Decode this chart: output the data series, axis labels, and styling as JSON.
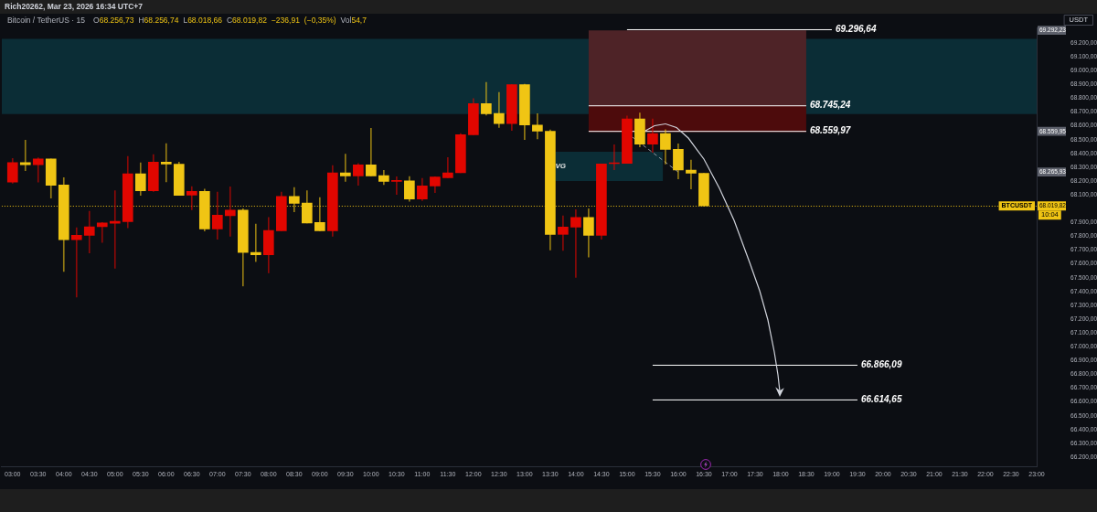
{
  "chart_data": {
    "type": "candlestick",
    "title": "Bitcoin / TetherUS · 15",
    "subtitle": "O68.256,73 H68.256,74 L68.018,66 C68.019,82 −236,91 (−0,35%) Vol54,7",
    "ylabel": "USDT",
    "x": [
      3,
      3.25,
      3.5,
      3.75,
      4,
      4.25,
      4.5,
      4.75,
      5,
      5.25,
      5.5,
      5.75,
      6,
      6.25,
      6.5,
      6.75,
      7,
      7.25,
      7.5,
      7.75,
      8,
      8.25,
      8.5,
      8.75,
      9,
      9.25,
      9.5,
      9.75,
      10,
      10.25,
      10.5,
      10.75,
      11,
      11.25,
      11.5,
      11.75,
      12,
      12.25,
      12.5,
      12.75,
      13,
      13.25,
      13.5,
      13.75,
      14,
      14.25,
      14.5,
      14.75,
      15,
      15.25,
      15.5,
      15.75,
      16,
      16.25,
      16.5
    ],
    "ohlc": [
      [
        68193,
        68363,
        68185,
        68334
      ],
      [
        68334,
        68496,
        68275,
        68319
      ],
      [
        68319,
        68368,
        68193,
        68361
      ],
      [
        68361,
        68361,
        68076,
        68169
      ],
      [
        68171,
        68224,
        67546,
        67776
      ],
      [
        67776,
        67862,
        67359,
        67807
      ],
      [
        67807,
        67981,
        67679,
        67869
      ],
      [
        67869,
        67900,
        67756,
        67897
      ],
      [
        67895,
        68131,
        67568,
        67908
      ],
      [
        67906,
        68379,
        67862,
        68253
      ],
      [
        68253,
        68332,
        68096,
        68129
      ],
      [
        68129,
        68392,
        68125,
        68337
      ],
      [
        68337,
        68471,
        68195,
        68323
      ],
      [
        68323,
        68337,
        68096,
        68096
      ],
      [
        68098,
        68160,
        67992,
        68125
      ],
      [
        68125,
        68142,
        67838,
        67853
      ],
      [
        67853,
        68120,
        67778,
        67953
      ],
      [
        67950,
        68158,
        67800,
        67990
      ],
      [
        67990,
        67999,
        67440,
        67683
      ],
      [
        67683,
        67889,
        67617,
        67666
      ],
      [
        67666,
        67937,
        67535,
        67842
      ],
      [
        67840,
        68120,
        67840,
        68089
      ],
      [
        68089,
        68153,
        67977,
        68039
      ],
      [
        68041,
        68131,
        67897,
        67897
      ],
      [
        67900,
        68081,
        67840,
        67840
      ],
      [
        67840,
        68312,
        67800,
        68259
      ],
      [
        68259,
        68396,
        68198,
        68237
      ],
      [
        68237,
        68328,
        68169,
        68317
      ],
      [
        68317,
        68582,
        68237,
        68237
      ],
      [
        68239,
        68277,
        68175,
        68198
      ],
      [
        68198,
        68231,
        68103,
        68204
      ],
      [
        68202,
        68233,
        68054,
        68070
      ],
      [
        68070,
        68220,
        68059,
        68165
      ],
      [
        68165,
        68231,
        68116,
        68229
      ],
      [
        68224,
        68370,
        68224,
        68260
      ],
      [
        68260,
        68544,
        68260,
        68536
      ],
      [
        68536,
        68798,
        68536,
        68761
      ],
      [
        68761,
        68915,
        68677,
        68688
      ],
      [
        68690,
        68842,
        68589,
        68617
      ],
      [
        68617,
        68898,
        68566,
        68898
      ],
      [
        68898,
        68902,
        68500,
        68606
      ],
      [
        68606,
        68688,
        68505,
        68562
      ],
      [
        68560,
        68571,
        67701,
        67814
      ],
      [
        67814,
        67948,
        67697,
        67867
      ],
      [
        67867,
        67993,
        67502,
        67937
      ],
      [
        67937,
        67999,
        67650,
        67807
      ],
      [
        67807,
        68324,
        67778,
        68324
      ],
      [
        68326,
        68463,
        68282,
        68330
      ],
      [
        68328,
        68672,
        68328,
        68650
      ],
      [
        68650,
        68694,
        68447,
        68467
      ],
      [
        68467,
        68650,
        68408,
        68544
      ],
      [
        68544,
        68573,
        68324,
        68430
      ],
      [
        68430,
        68469,
        68215,
        68280
      ],
      [
        68280,
        68352,
        68143,
        68257
      ],
      [
        68256.73,
        68256.74,
        68018.66,
        68019.82
      ]
    ],
    "colors": [
      "#e10600",
      "#f0c514",
      "#e10600",
      "#f0c514",
      "#f0c514",
      "#e10600",
      "#e10600",
      "#e10600",
      "#e10600",
      "#e10600",
      "#f0c514",
      "#e10600",
      "#f0c514",
      "#f0c514",
      "#e10600",
      "#f0c514",
      "#e10600",
      "#e10600",
      "#f0c514",
      "#f0c514",
      "#e10600",
      "#e10600",
      "#f0c514",
      "#f0c514",
      "#f0c514",
      "#e10600",
      "#f0c514",
      "#e10600",
      "#f0c514",
      "#f0c514",
      "#e10600",
      "#f0c514",
      "#e10600",
      "#e10600",
      "#e10600",
      "#e10600",
      "#e10600",
      "#f0c514",
      "#f0c514",
      "#e10600",
      "#f0c514",
      "#f0c514",
      "#f0c514",
      "#e10600",
      "#e10600",
      "#f0c514",
      "#e10600",
      "#e10600",
      "#e10600",
      "#f0c514",
      "#e10600",
      "#f0c514",
      "#f0c514",
      "#f0c514",
      "#f0c514"
    ],
    "series": [
      {
        "type": "line",
        "x": [
          14.25,
          18.5
        ],
        "values": [
          null,
          null
        ],
        "lower": [
          68745.24,
          68745.24
        ],
        "upper": [
          69292.23,
          69292.23
        ],
        "color": "#4e2327"
      },
      {
        "type": "line",
        "x": [
          14.25,
          18.5
        ],
        "values": [
          null,
          null
        ],
        "lower": [
          68555,
          68555
        ],
        "upper": [
          68745.24,
          68745.24
        ],
        "color": "#4d0b0c"
      },
      {
        "type": "line",
        "x": [
          13.6,
          15.7
        ],
        "values": [
          null,
          null
        ],
        "lower": [
          68200,
          68200
        ],
        "upper": [
          68412,
          68412
        ],
        "color": "#0b2d36"
      },
      {
        "type": "line",
        "x": [
          15,
          19
        ],
        "values": [
          69296.64,
          69296.64
        ],
        "color": "#ffffff",
        "value_labels": [
          null,
          "69.296,64"
        ]
      },
      {
        "type": "line",
        "x": [
          14.25,
          18.5
        ],
        "values": [
          68745.24,
          68745.24
        ],
        "color": "#ffffff",
        "value_labels": [
          null,
          "68.745,24"
        ]
      },
      {
        "type": "line",
        "x": [
          14.25,
          18.5
        ],
        "values": [
          68559.97,
          68559.97
        ],
        "color": "#ffffff",
        "value_labels": [
          null,
          "68.559,97"
        ]
      },
      {
        "type": "line",
        "x": [
          15.5,
          19.5
        ],
        "values": [
          66866.09,
          66866.09
        ],
        "color": "#ffffff",
        "value_labels": [
          null,
          "66.866,09"
        ]
      },
      {
        "type": "line",
        "x": [
          15.5,
          19.5
        ],
        "values": [
          66614.65,
          66614.65
        ],
        "color": "#ffffff",
        "value_labels": [
          null,
          "66.614,65"
        ]
      },
      {
        "type": "line",
        "x": [
          15.1,
          16
        ],
        "values": [
          68520,
          68265.93
        ],
        "color": "#9598a1",
        "line_style": "dashed"
      }
    ],
    "bands": [
      {
        "axis": "y",
        "from": 68686,
        "to": 69231,
        "color": "#0b2d36"
      }
    ],
    "ref_lines": [
      {
        "axis": "y",
        "value": 68019.82,
        "label": "BTCUSDT",
        "color": "#f0c514",
        "line_style": "dotted"
      }
    ],
    "annotations": [
      "Rich20262, Mar 23, 2026 16:34 UTC+7",
      "10:04",
      {
        "text": "VG",
        "x": 13.6,
        "y": 68306
      }
    ],
    "xlim": [
      2.787,
      23
    ],
    "xticks": [
      {
        "value": 3,
        "label": "03:00"
      },
      {
        "value": 3.5,
        "label": "03:30"
      },
      {
        "value": 4,
        "label": "04:00"
      },
      {
        "value": 4.5,
        "label": "04:30"
      },
      {
        "value": 5,
        "label": "05:00"
      },
      {
        "value": 5.5,
        "label": "05:30"
      },
      {
        "value": 6,
        "label": "06:00"
      },
      {
        "value": 6.5,
        "label": "06:30"
      },
      {
        "value": 7,
        "label": "07:00"
      },
      {
        "value": 7.5,
        "label": "07:30"
      },
      {
        "value": 8,
        "label": "08:00"
      },
      {
        "value": 8.5,
        "label": "08:30"
      },
      {
        "value": 9,
        "label": "09:00"
      },
      {
        "value": 9.5,
        "label": "09:30"
      },
      {
        "value": 10,
        "label": "10:00"
      },
      {
        "value": 10.5,
        "label": "10:30"
      },
      {
        "value": 11,
        "label": "11:00"
      },
      {
        "value": 11.5,
        "label": "11:30"
      },
      {
        "value": 12,
        "label": "12:00"
      },
      {
        "value": 12.5,
        "label": "12:30"
      },
      {
        "value": 13,
        "label": "13:00"
      },
      {
        "value": 13.5,
        "label": "13:30"
      },
      {
        "value": 14,
        "label": "14:00"
      },
      {
        "value": 14.5,
        "label": "14:30"
      },
      {
        "value": 15,
        "label": "15:00"
      },
      {
        "value": 15.5,
        "label": "15:30"
      },
      {
        "value": 16,
        "label": "16:00"
      },
      {
        "value": 16.5,
        "label": "16:30"
      },
      {
        "value": 17,
        "label": "17:00"
      },
      {
        "value": 17.5,
        "label": "17:30"
      },
      {
        "value": 18,
        "label": "18:00"
      },
      {
        "value": 18.5,
        "label": "18:30"
      },
      {
        "value": 19,
        "label": "19:00"
      },
      {
        "value": 19.5,
        "label": "19:30"
      },
      {
        "value": 20,
        "label": "20:00"
      },
      {
        "value": 20.5,
        "label": "20:30"
      },
      {
        "value": 21,
        "label": "21:00"
      },
      {
        "value": 21.5,
        "label": "21:30"
      },
      {
        "value": 22,
        "label": "22:00"
      },
      {
        "value": 22.5,
        "label": "22:30"
      },
      {
        "value": 23,
        "label": "23:00"
      }
    ],
    "ylim": [
      66134,
      69313
    ],
    "yticks": [
      {
        "value": 66200,
        "label": "66.200,00"
      },
      {
        "value": 66300,
        "label": "66.300,00"
      },
      {
        "value": 66400,
        "label": "66.400,00"
      },
      {
        "value": 66500,
        "label": "66.500,00"
      },
      {
        "value": 66600,
        "label": "66.600,00"
      },
      {
        "value": 66700,
        "label": "66.700,00"
      },
      {
        "value": 66800,
        "label": "66.800,00"
      },
      {
        "value": 66900,
        "label": "66.900,00"
      },
      {
        "value": 67000,
        "label": "67.000,00"
      },
      {
        "value": 67100,
        "label": "67.100,00"
      },
      {
        "value": 67200,
        "label": "67.200,00"
      },
      {
        "value": 67300,
        "label": "67.300,00"
      },
      {
        "value": 67400,
        "label": "67.400,00"
      },
      {
        "value": 67500,
        "label": "67.500,00"
      },
      {
        "value": 67600,
        "label": "67.600,00"
      },
      {
        "value": 67700,
        "label": "67.700,00"
      },
      {
        "value": 67800,
        "label": "67.800,00"
      },
      {
        "value": 67900,
        "label": "67.900,00"
      },
      {
        "value": 68100,
        "label": "68.100,00"
      },
      {
        "value": 68200,
        "label": "68.200,00"
      },
      {
        "value": 68300,
        "label": "68.300,00"
      },
      {
        "value": 68400,
        "label": "68.400,00"
      },
      {
        "value": 68500,
        "label": "68.500,00"
      },
      {
        "value": 68600,
        "label": "68.600,00"
      },
      {
        "value": 68700,
        "label": "68.700,00"
      },
      {
        "value": 68800,
        "label": "68.800,00"
      },
      {
        "value": 68900,
        "label": "68.900,00"
      },
      {
        "value": 69000,
        "label": "69.000,00"
      },
      {
        "value": 69100,
        "label": "69.100,00"
      },
      {
        "value": 69200,
        "label": "69.200,00"
      }
    ],
    "y2lim": [
      66134,
      69313
    ],
    "y2ticks": [
      {
        "value": 69292.23,
        "label": "69.292,23"
      },
      {
        "value": 68559.95,
        "label": "68.559,95"
      },
      {
        "value": 68265.93,
        "label": "68.265,93"
      },
      {
        "value": 68019.82,
        "label": "68.019,82"
      }
    ]
  }
}
